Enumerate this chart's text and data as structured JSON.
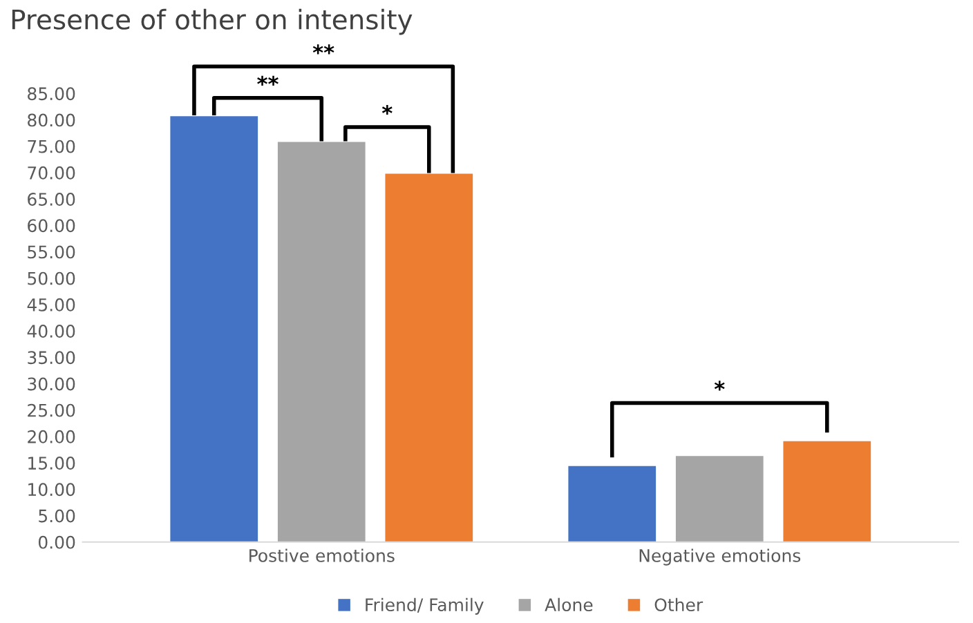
{
  "chart_data": {
    "type": "bar",
    "title": "Presence of other on intensity",
    "categories": [
      "Postive emotions",
      "Negative emotions"
    ],
    "series": [
      {
        "name": "Friend/ Family",
        "color": "#4472c4",
        "values": [
          80.7,
          14.4
        ]
      },
      {
        "name": "Alone",
        "color": "#a5a5a5",
        "values": [
          75.8,
          16.3
        ]
      },
      {
        "name": "Other",
        "color": "#ed7d31",
        "values": [
          69.8,
          19.1
        ]
      }
    ],
    "ylim": [
      0,
      85
    ],
    "yticks": [
      {
        "value": 0,
        "label": "0.00"
      },
      {
        "value": 5,
        "label": "5.00"
      },
      {
        "value": 10,
        "label": "10.00"
      },
      {
        "value": 15,
        "label": "15.00"
      },
      {
        "value": 20,
        "label": "20.00"
      },
      {
        "value": 25,
        "label": "25.00"
      },
      {
        "value": 30,
        "label": "30.00"
      },
      {
        "value": 35,
        "label": "35.00"
      },
      {
        "value": 40,
        "label": "40.00"
      },
      {
        "value": 45,
        "label": "45.00"
      },
      {
        "value": 50,
        "label": "50.00"
      },
      {
        "value": 55,
        "label": "55.00"
      },
      {
        "value": 60,
        "label": "60.00"
      },
      {
        "value": 65,
        "label": "65.00"
      },
      {
        "value": 70,
        "label": "70.00"
      },
      {
        "value": 75,
        "label": "75.00"
      },
      {
        "value": 80,
        "label": "80.00"
      },
      {
        "value": 85,
        "label": "85.00"
      }
    ],
    "annotations": [
      "**",
      "**",
      "*",
      "*"
    ],
    "grid": false,
    "legend": "bottom"
  }
}
